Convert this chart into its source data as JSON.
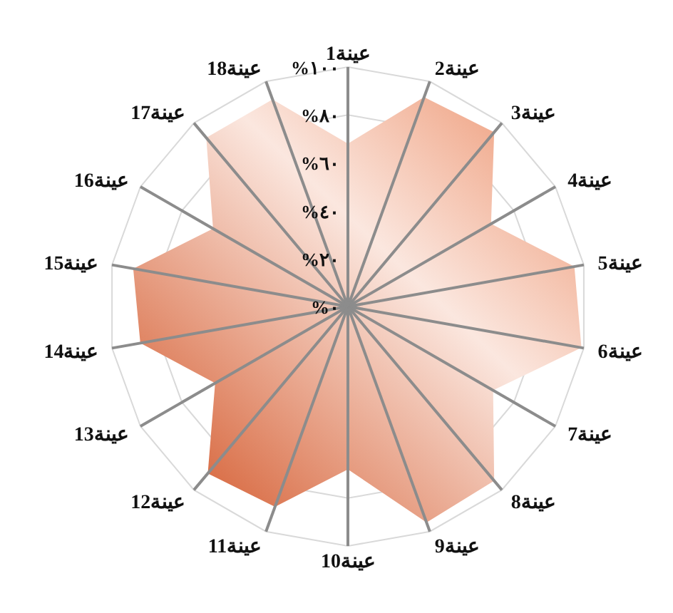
{
  "chart_data": {
    "type": "radar",
    "categories": [
      "عينة1",
      "عينة2",
      "عينة3",
      "عينة4",
      "عينة5",
      "عينة6",
      "عينة7",
      "عينة8",
      "عينة9",
      "عينة10",
      "عينة11",
      "عينة12",
      "عينة13",
      "عينة14",
      "عينة15",
      "عينة16",
      "عينة17",
      "عينة18"
    ],
    "series": [
      {
        "color": "#e4602a",
        "values": [
          68,
          93,
          95,
          69,
          96,
          99,
          70,
          95,
          96,
          68,
          89,
          91,
          64,
          88,
          91,
          65,
          92,
          92
        ]
      }
    ],
    "ylim": [
      0,
      100
    ],
    "yticks": [
      {
        "value": 0,
        "label": "%٠"
      },
      {
        "value": 20,
        "label": "%٢٠"
      },
      {
        "value": 40,
        "label": "%٤٠"
      },
      {
        "value": 60,
        "label": "%٦٠"
      },
      {
        "value": 80,
        "label": "%٨٠"
      },
      {
        "value": 100,
        "label": "%١٠٠"
      }
    ],
    "grid": true
  }
}
